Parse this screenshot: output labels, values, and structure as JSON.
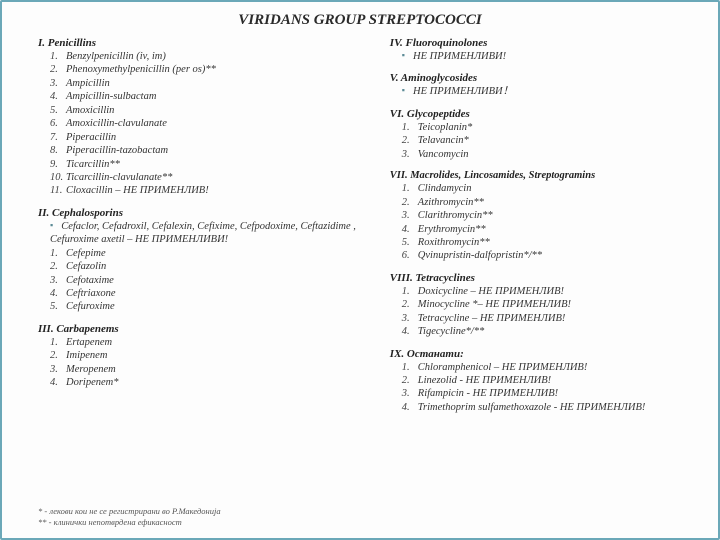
{
  "title": "VIRIDANS GROUP STREPTOCOCCI",
  "left": [
    {
      "heading": "I. Penicillins",
      "type": "numbered",
      "items": [
        "Benzylpenicillin (iv, im)",
        "Phenoxymethylpenicillin (per os)**",
        "Ampicillin",
        "Ampicillin-sulbactam",
        "Amoxicillin",
        "Amoxicillin-clavulanate",
        "Piperacillin",
        "Piperacillin-tazobactam",
        "Ticarcillin**",
        "Ticarcillin-clavulanate**",
        "Cloxacillin – НЕ ПРИМЕНЛИВ!"
      ]
    },
    {
      "heading": "II. Cephalosporins",
      "type": "mixed",
      "bullets": [
        "Cefaclor, Cefadroxil, Cefalexin, Cefixime, Cefpodoxime, Ceftazidime , Cefuroxime axetil – НЕ ПРИМЕНЛИВИ!"
      ],
      "items": [
        "Cefepime",
        "Cefazolin",
        "Cefotaxime",
        "Ceftriaxone",
        "Cefuroxime"
      ]
    },
    {
      "heading": "III. Carbapenems",
      "type": "numbered",
      "items": [
        "Ertapenem",
        "Imipenem",
        "Meropenem",
        "Doripenem*"
      ]
    }
  ],
  "right": [
    {
      "heading": "IV. Fluoroquinolones",
      "type": "bulleted",
      "items": [
        "НЕ ПРИМЕНЛИВИ!"
      ]
    },
    {
      "heading": "V. Aminoglycosides",
      "type": "bulleted",
      "items": [
        "НЕ ПРИМЕНЛИВИ！"
      ]
    },
    {
      "heading": "VI. Glycopeptides",
      "type": "numbered",
      "items": [
        "Teicoplanin*",
        "Telavancin*",
        "Vancomycin"
      ]
    },
    {
      "heading": "VII. Macrolides, Lincosamides, Streptogramins",
      "type": "numbered",
      "items": [
        "Clindamycin",
        "Azithromycin**",
        "Clarithromycin**",
        "Erythromycin**",
        "Roxithromycin**",
        "Qvinupristin-dalfopristin*/**"
      ]
    },
    {
      "heading": "VIII. Tetracyclines",
      "type": "numbered",
      "items": [
        "Doxicycline – НЕ ПРИМЕНЛИВ!",
        "Minocycline *– НЕ ПРИМЕНЛИВ!",
        "Tetracycline – НЕ ПРИМЕНЛИВ!",
        "Tigecycline*/**"
      ]
    },
    {
      "heading": "IX. Останати:",
      "type": "numbered",
      "items": [
        "Chloramphenicol – НЕ ПРИМЕНЛИВ!",
        "Linezolid - НЕ ПРИМЕНЛИВ!",
        "Rifampicin - НЕ ПРИМЕНЛИВ!",
        "Trimethoprim sulfamethoxazole - НЕ ПРИМЕНЛИВ!"
      ]
    }
  ],
  "footnotes": [
    "* - лекови кои не се регистрирани во Р.Македонија",
    "** - клинички непотврдена ефикасност"
  ]
}
